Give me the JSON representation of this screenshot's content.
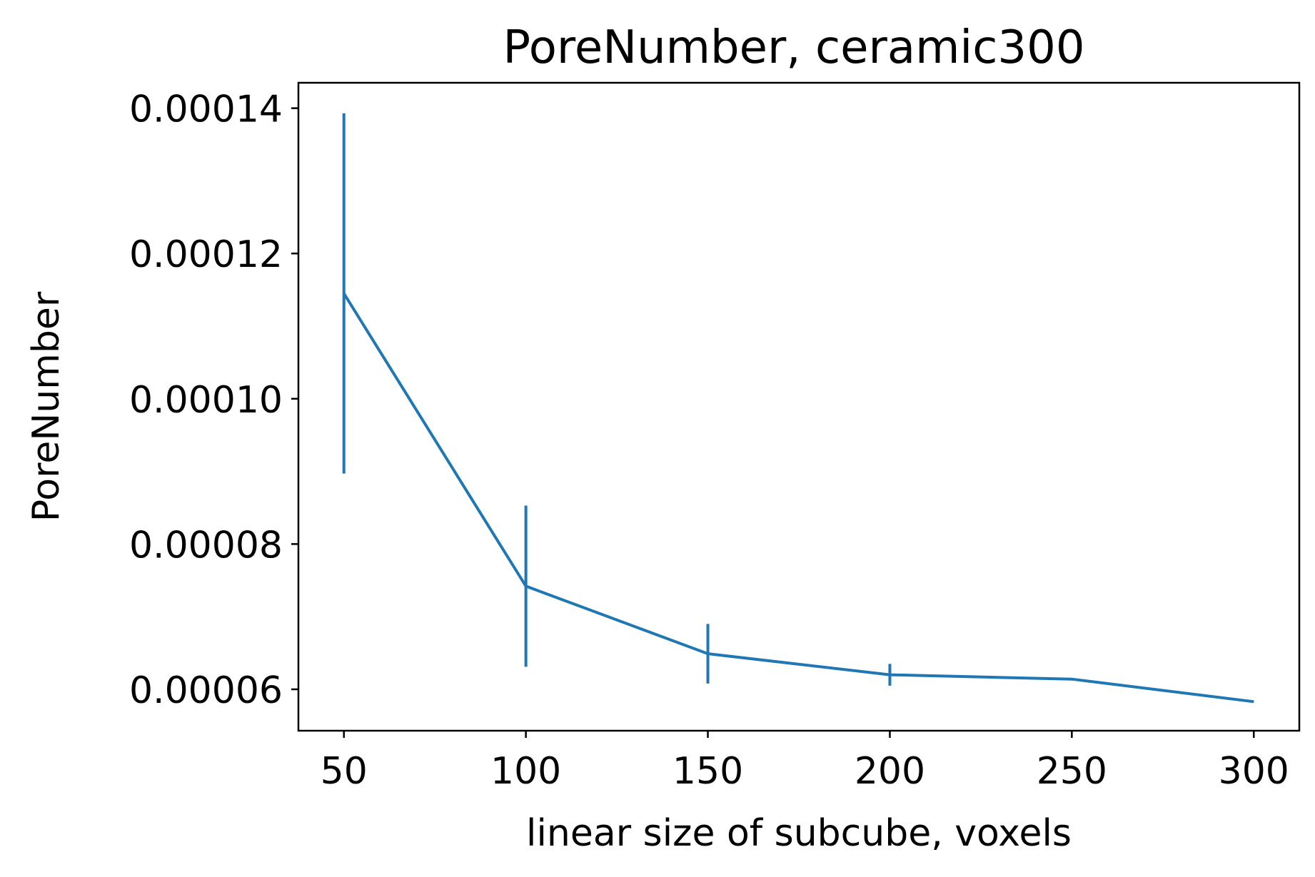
{
  "chart_data": {
    "type": "line",
    "title": "PoreNumber, ceramic300",
    "xlabel": "linear size of subcube, voxels",
    "ylabel": "PoreNumber",
    "x": [
      50,
      100,
      150,
      200,
      250,
      300
    ],
    "series": [
      {
        "values": [
          0.0001145,
          7.42e-05,
          6.49e-05,
          6.2e-05,
          6.14e-05,
          5.83e-05
        ],
        "errors": [
          2.48e-05,
          1.11e-05,
          4.1e-06,
          1.5e-06,
          0,
          0
        ],
        "color": "#1f77b4"
      }
    ],
    "xlim": [
      37.5,
      312.5
    ],
    "ylim": [
      5.43e-05,
      0.0001435
    ],
    "xticks": [
      50,
      100,
      150,
      200,
      250,
      300
    ],
    "xtick_labels": [
      "50",
      "100",
      "150",
      "200",
      "250",
      "300"
    ],
    "yticks": [
      6e-05,
      8e-05,
      0.0001,
      0.00012,
      0.00014
    ],
    "ytick_labels": [
      "0.00006",
      "0.00008",
      "0.00010",
      "0.00012",
      "0.00014"
    ],
    "grid": false,
    "legend": "none"
  }
}
